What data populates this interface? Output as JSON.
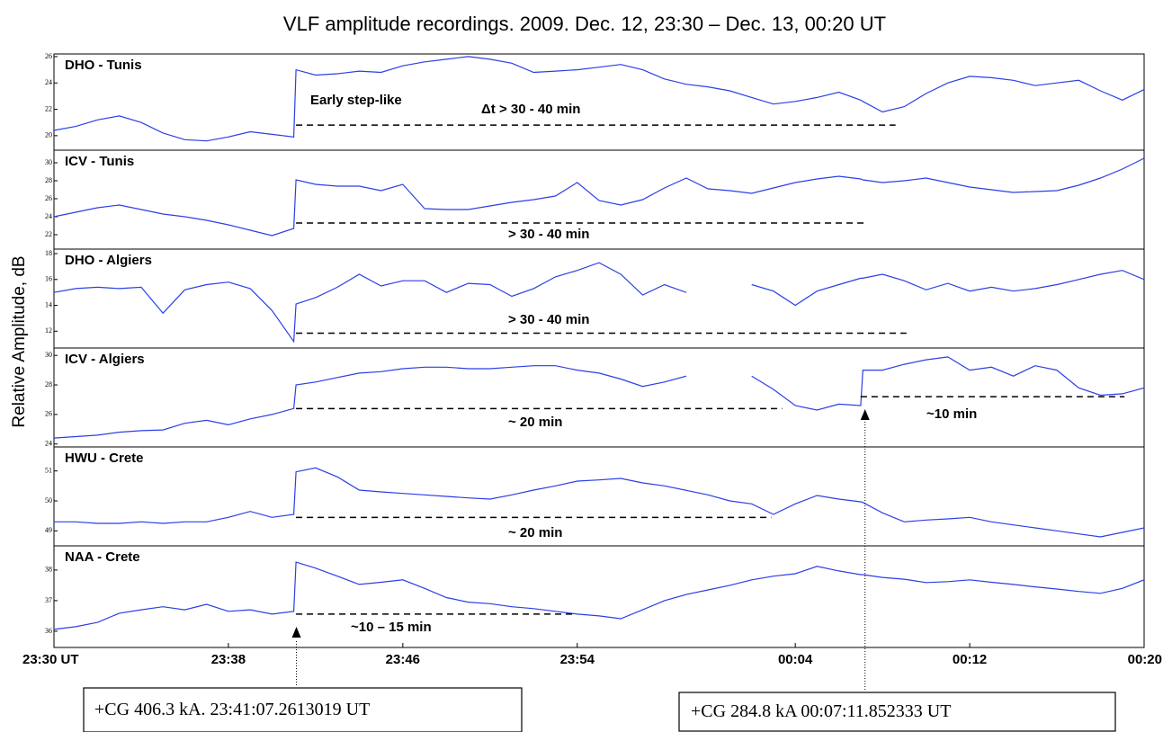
{
  "title": "VLF amplitude recordings. 2009. Dec. 12, 23:30 – Dec. 13, 00:20 UT",
  "ylabel": "Relative Amplitude, dB",
  "xlim": [
    0,
    50
  ],
  "xticks": [
    {
      "value": 0,
      "label": "23:30 UT"
    },
    {
      "value": 8,
      "label": "23:38"
    },
    {
      "value": 16,
      "label": "23:46"
    },
    {
      "value": 24,
      "label": "23:54"
    },
    {
      "value": 34,
      "label": "00:04"
    },
    {
      "value": 42,
      "label": "00:12"
    },
    {
      "value": 50,
      "label": "00:20"
    }
  ],
  "events": [
    {
      "x": 11.12,
      "label": "+CG 406.3 kA.  23:41:07.2613019 UT"
    },
    {
      "x": 37.2,
      "label": "+CG 284.8 kA 00:07:11.852333 UT"
    }
  ],
  "chart_data": [
    {
      "type": "line",
      "name": "DHO - Tunis",
      "color": "#2b3fe6",
      "ylim": [
        18.9,
        26.2
      ],
      "yticks": [
        20,
        22,
        24,
        26
      ],
      "x": [
        0,
        1,
        2,
        3,
        4,
        5,
        6,
        7,
        8,
        9,
        10,
        11,
        11.1,
        12,
        13,
        14,
        15,
        16,
        17,
        18,
        19,
        20,
        21,
        22,
        23,
        24,
        25,
        26,
        27,
        28,
        29,
        30,
        31,
        32,
        33,
        34,
        35,
        36,
        37,
        37.1,
        38,
        39,
        40,
        41,
        42,
        43,
        44,
        45,
        46,
        47,
        48,
        49,
        50
      ],
      "values": [
        20.4,
        20.7,
        21.2,
        21.5,
        21.0,
        20.2,
        19.7,
        19.6,
        19.9,
        20.3,
        20.1,
        19.9,
        25.0,
        24.6,
        24.7,
        24.9,
        24.8,
        25.3,
        25.6,
        25.8,
        26.0,
        25.8,
        25.5,
        24.8,
        24.9,
        25.0,
        25.2,
        25.4,
        25.0,
        24.3,
        23.9,
        23.7,
        23.4,
        22.9,
        22.4,
        22.6,
        22.9,
        23.3,
        22.7,
        22.6,
        21.8,
        22.2,
        23.2,
        24.0,
        24.5,
        24.4,
        24.2,
        23.8,
        24.0,
        24.2,
        23.4,
        22.7,
        23.5
      ],
      "spans": [
        {
          "x": [
            11.1,
            38.6
          ],
          "y": 20.8,
          "labels": [
            "Early step-like",
            "Δt  > 30 - 40 min"
          ]
        }
      ]
    },
    {
      "type": "line",
      "name": "ICV  - Tunis",
      "color": "#2b3fe6",
      "ylim": [
        20.4,
        31.4
      ],
      "yticks": [
        22,
        24,
        26,
        28,
        30
      ],
      "x": [
        0,
        1,
        2,
        3,
        4,
        5,
        6,
        7,
        8,
        9,
        10,
        11,
        11.1,
        12,
        13,
        14,
        15,
        16,
        17,
        18,
        19,
        20,
        21,
        22,
        23,
        24,
        25,
        26,
        27,
        28,
        29,
        30,
        31,
        32,
        33,
        34,
        35,
        36,
        37,
        37.1,
        38,
        39,
        40,
        41,
        42,
        43,
        44,
        45,
        46,
        47,
        48,
        49,
        50
      ],
      "values": [
        24.0,
        24.5,
        25.0,
        25.3,
        24.8,
        24.3,
        24.0,
        23.6,
        23.1,
        22.5,
        21.9,
        22.7,
        28.1,
        27.6,
        27.4,
        27.4,
        26.9,
        27.6,
        24.9,
        24.8,
        24.8,
        25.2,
        25.6,
        25.9,
        26.3,
        27.8,
        25.8,
        25.3,
        25.9,
        27.2,
        28.3,
        27.1,
        26.9,
        26.6,
        27.2,
        27.8,
        28.2,
        28.5,
        28.2,
        28.1,
        27.8,
        28.0,
        28.3,
        27.8,
        27.3,
        27.0,
        26.7,
        26.8,
        26.9,
        27.5,
        28.3,
        29.3,
        30.5
      ],
      "spans": [
        {
          "x": [
            11.1,
            37.3
          ],
          "y": 23.3,
          "labels": [
            "> 30 - 40 min"
          ]
        }
      ]
    },
    {
      "type": "line",
      "name": "DHO - Algiers",
      "color": "#2b3fe6",
      "ylim": [
        10.7,
        18.35
      ],
      "yticks": [
        12,
        14,
        16,
        18
      ],
      "x": [
        0,
        1,
        2,
        3,
        4,
        5,
        6,
        7,
        8,
        9,
        10,
        11,
        11.1,
        12,
        13,
        14,
        15,
        16,
        17,
        18,
        19,
        20,
        21,
        22,
        23,
        24,
        25,
        26,
        27,
        28,
        29,
        30,
        31,
        32,
        33,
        34,
        35,
        36,
        37,
        37.1,
        38,
        39,
        40,
        41,
        42,
        43,
        44,
        45,
        46,
        47,
        48,
        49,
        50
      ],
      "values": [
        15.0,
        15.3,
        15.4,
        15.3,
        15.4,
        13.4,
        15.2,
        15.6,
        15.8,
        15.3,
        13.6,
        11.2,
        14.1,
        14.6,
        15.4,
        16.4,
        15.5,
        15.9,
        15.9,
        15.0,
        15.7,
        15.6,
        14.7,
        15.3,
        16.2,
        16.7,
        17.3,
        16.4,
        14.8,
        15.6,
        15.0,
        null,
        null,
        15.6,
        15.1,
        14.0,
        15.1,
        15.6,
        16.1,
        16.1,
        16.4,
        15.9,
        15.2,
        15.7,
        15.1,
        15.4,
        15.1,
        15.3,
        15.6,
        16.0,
        16.4,
        16.7,
        16.0
      ],
      "spans": [
        {
          "x": [
            11.1,
            39.1
          ],
          "y": 11.85,
          "labels": [
            "> 30 - 40 min"
          ]
        }
      ]
    },
    {
      "type": "line",
      "name": "ICV  - Algiers",
      "color": "#2b3fe6",
      "ylim": [
        23.8,
        30.5
      ],
      "yticks": [
        24,
        26,
        28,
        30
      ],
      "x": [
        0,
        1,
        2,
        3,
        4,
        5,
        6,
        7,
        8,
        9,
        10,
        11,
        11.1,
        12,
        13,
        14,
        15,
        16,
        17,
        18,
        19,
        20,
        21,
        22,
        23,
        24,
        25,
        26,
        27,
        28,
        29,
        30,
        31,
        32,
        33,
        34,
        35,
        36,
        37,
        37.1,
        38,
        39,
        40,
        41,
        42,
        43,
        44,
        45,
        46,
        47,
        48,
        49,
        50
      ],
      "values": [
        24.4,
        24.5,
        24.6,
        24.8,
        24.9,
        24.95,
        25.4,
        25.6,
        25.3,
        25.7,
        26.0,
        26.4,
        28.0,
        28.2,
        28.5,
        28.8,
        28.9,
        29.1,
        29.2,
        29.2,
        29.1,
        29.1,
        29.2,
        29.3,
        29.3,
        29.0,
        28.8,
        28.4,
        27.9,
        28.2,
        28.6,
        null,
        null,
        28.6,
        27.7,
        26.6,
        26.3,
        26.7,
        26.6,
        29.0,
        29.0,
        29.4,
        29.7,
        29.9,
        29.0,
        29.2,
        28.6,
        29.3,
        29.0,
        27.8,
        27.3,
        27.4,
        27.8
      ],
      "spans": [
        {
          "x": [
            11.1,
            33.4
          ],
          "y": 26.4,
          "labels": [
            "~ 20 min"
          ]
        },
        {
          "x": [
            37.0,
            49.1
          ],
          "y": 27.2,
          "labels": [
            "~10 min"
          ]
        }
      ]
    },
    {
      "type": "line",
      "name": "HWU  - Crete",
      "color": "#2b3fe6",
      "ylim": [
        48.5,
        51.8
      ],
      "yticks": [
        49,
        50,
        51
      ],
      "x": [
        0,
        1,
        2,
        3,
        4,
        5,
        6,
        7,
        8,
        9,
        10,
        11,
        11.1,
        12,
        13,
        14,
        15,
        16,
        17,
        18,
        19,
        20,
        21,
        22,
        23,
        24,
        25,
        26,
        27,
        28,
        29,
        30,
        31,
        32,
        33,
        34,
        35,
        36,
        37,
        37.1,
        38,
        39,
        40,
        41,
        42,
        43,
        44,
        45,
        46,
        47,
        48,
        49,
        50
      ],
      "values": [
        49.3,
        49.3,
        49.25,
        49.25,
        49.3,
        49.25,
        49.3,
        49.3,
        49.45,
        49.65,
        49.45,
        49.55,
        50.97,
        51.1,
        50.8,
        50.36,
        50.3,
        50.25,
        50.2,
        50.15,
        50.1,
        50.06,
        50.2,
        50.36,
        50.5,
        50.66,
        50.7,
        50.75,
        50.6,
        50.5,
        50.35,
        50.2,
        50.0,
        49.9,
        49.55,
        49.9,
        50.18,
        50.06,
        49.97,
        49.95,
        49.6,
        49.3,
        49.36,
        49.4,
        49.45,
        49.3,
        49.2,
        49.1,
        49.0,
        48.9,
        48.8,
        48.95,
        49.1
      ],
      "spans": [
        {
          "x": [
            11.1,
            32.9
          ],
          "y": 49.45,
          "labels": [
            "~ 20 min"
          ]
        }
      ]
    },
    {
      "type": "line",
      "name": "NAA  - Crete",
      "color": "#2b3fe6",
      "ylim": [
        35.47,
        38.79
      ],
      "yticks": [
        36,
        37,
        38
      ],
      "x": [
        0,
        1,
        2,
        3,
        4,
        5,
        6,
        7,
        8,
        9,
        10,
        11,
        11.1,
        12,
        13,
        14,
        15,
        16,
        17,
        18,
        19,
        20,
        21,
        22,
        23,
        24,
        25,
        26,
        27,
        28,
        29,
        30,
        31,
        32,
        33,
        34,
        35,
        36,
        37,
        37.1,
        38,
        39,
        40,
        41,
        42,
        43,
        44,
        45,
        46,
        47,
        48,
        49,
        50
      ],
      "values": [
        36.06,
        36.15,
        36.29,
        36.59,
        36.7,
        36.8,
        36.7,
        36.88,
        36.65,
        36.7,
        36.56,
        36.65,
        38.26,
        38.06,
        37.8,
        37.53,
        37.6,
        37.68,
        37.4,
        37.1,
        36.95,
        36.9,
        36.8,
        36.74,
        36.65,
        36.56,
        36.5,
        36.41,
        36.7,
        37.0,
        37.2,
        37.35,
        37.5,
        37.68,
        37.8,
        37.88,
        38.12,
        37.97,
        37.85,
        37.85,
        37.76,
        37.7,
        37.59,
        37.62,
        37.68,
        37.6,
        37.53,
        37.45,
        37.38,
        37.3,
        37.24,
        37.4,
        37.68
      ],
      "spans": [
        {
          "x": [
            11.1,
            23.9
          ],
          "y": 36.56,
          "labels": [
            "~10 – 15 min"
          ]
        }
      ]
    }
  ]
}
